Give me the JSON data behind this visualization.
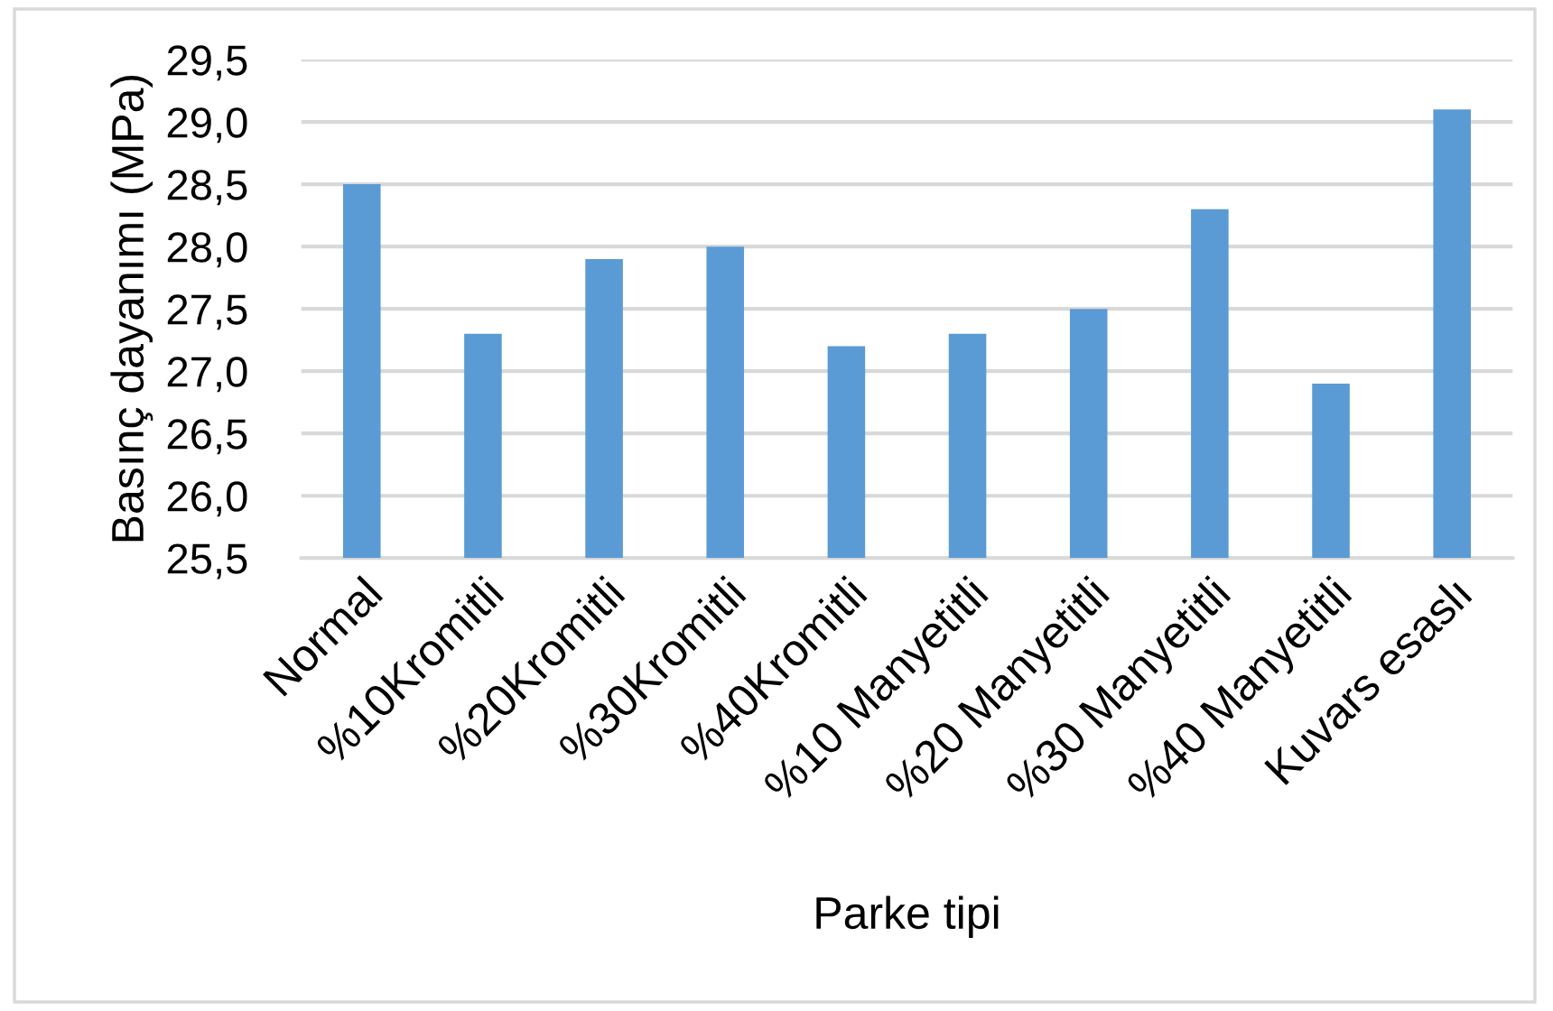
{
  "chart_data": {
    "type": "bar",
    "categories": [
      "Normal",
      "%10Kromitli",
      "%20Kromitli",
      "%30Kromitli",
      "%40Kromitli",
      "%10 Manyetitli",
      "%20 Manyetitli",
      "%30 Manyetitli",
      "%40 Manyetitli",
      "Kuvars esaslı"
    ],
    "values": [
      28.5,
      27.3,
      27.9,
      28.0,
      27.2,
      27.3,
      27.5,
      28.3,
      26.9,
      29.1
    ],
    "color": "#5b9bd5",
    "xlabel": "Parke tipi",
    "ylabel": "Basınç dayanımı (MPa)",
    "ylim": [
      25.5,
      29.5
    ],
    "yticks": [
      {
        "value": 25.5,
        "label": "25,5"
      },
      {
        "value": 26.0,
        "label": "26,0"
      },
      {
        "value": 26.5,
        "label": "26,5"
      },
      {
        "value": 27.0,
        "label": "27,0"
      },
      {
        "value": 27.5,
        "label": "27,5"
      },
      {
        "value": 28.0,
        "label": "28,0"
      },
      {
        "value": 28.5,
        "label": "28,5"
      },
      {
        "value": 29.0,
        "label": "29,0"
      },
      {
        "value": 29.5,
        "label": "29,5"
      }
    ],
    "grid": "y"
  }
}
